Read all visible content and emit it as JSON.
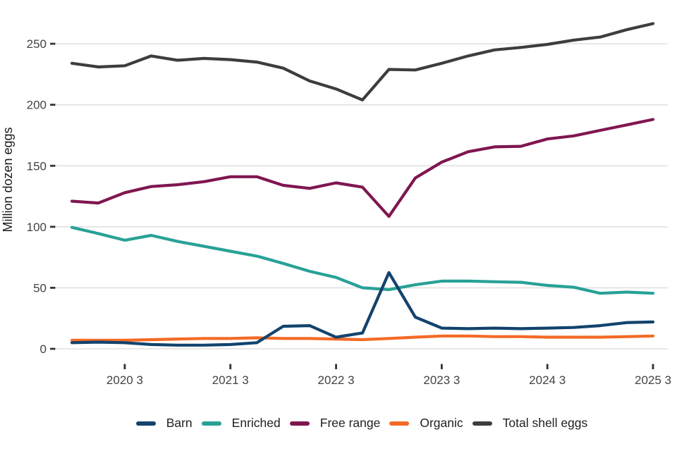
{
  "chart_data": {
    "type": "line",
    "title": "",
    "xlabel": "",
    "ylabel": "Million dozen eggs",
    "x": [
      "2020 1",
      "2020 2",
      "2020 3",
      "2020 4",
      "2021 1",
      "2021 2",
      "2021 3",
      "2021 4",
      "2022 1",
      "2022 2",
      "2022 3",
      "2022 4",
      "2023 1",
      "2023 2",
      "2023 3",
      "2023 4",
      "2024 1",
      "2024 2",
      "2024 3",
      "2024 4",
      "2025 1",
      "2025 2",
      "2025 3"
    ],
    "x_tick_labels": [
      "2020 3",
      "2021 3",
      "2022 3",
      "2023 3",
      "2024 3",
      "2025 3"
    ],
    "x_tick_indices": [
      2,
      6,
      10,
      14,
      18,
      22
    ],
    "y_ticks": [
      0,
      50,
      100,
      150,
      200,
      250
    ],
    "ylim": [
      0,
      250
    ],
    "grid": "horizontal-only",
    "legend_position": "bottom",
    "series": [
      {
        "name": "Barn",
        "color": "#12436D",
        "values": [
          5,
          5.5,
          5,
          3.5,
          3,
          3,
          3.5,
          5,
          18.5,
          19,
          9.5,
          13,
          62.5,
          26,
          17,
          16.5,
          17,
          16.5,
          17,
          17.5,
          19,
          21.5,
          22
        ]
      },
      {
        "name": "Enriched",
        "color": "#28A197",
        "values": [
          99.5,
          94.5,
          89,
          93,
          88,
          84,
          80,
          76,
          70,
          63.5,
          58.5,
          50,
          48.5,
          52.5,
          55.5,
          55.5,
          55,
          54.5,
          52,
          50.5,
          45.5,
          46.5,
          45.5
        ]
      },
      {
        "name": "Free range",
        "color": "#801650",
        "values": [
          121,
          119.5,
          128,
          133,
          134.5,
          137,
          141,
          141,
          134,
          131.5,
          136,
          132.5,
          108.5,
          140,
          153,
          161.5,
          165.5,
          166,
          172,
          174.5,
          179,
          183.5,
          188
        ]
      },
      {
        "name": "Organic",
        "color": "#F46A25",
        "values": [
          7,
          7,
          7,
          7.5,
          8,
          8.5,
          8.5,
          9,
          8.5,
          8.5,
          8,
          7.5,
          8.5,
          9.5,
          10.5,
          10.5,
          10,
          10,
          9.5,
          9.5,
          9.5,
          10,
          10.5
        ]
      },
      {
        "name": "Total shell eggs",
        "color": "#3D3D3D",
        "values": [
          234,
          231,
          232,
          240,
          236.5,
          238,
          237,
          235,
          230,
          219.5,
          213,
          204,
          229,
          228.5,
          234,
          240,
          245,
          247,
          249.5,
          253,
          255.5,
          261.5,
          266.5
        ]
      }
    ],
    "draw_order": [
      "Total shell eggs",
      "Free range",
      "Enriched",
      "Organic",
      "Barn"
    ]
  },
  "colors": {
    "background": "#ffffff",
    "gridline": "#e4e4e4",
    "tick_mark": "#333333",
    "tick_text": "#434343",
    "axis_title_text": "#1a1a1a",
    "legend_text": "#222222"
  }
}
